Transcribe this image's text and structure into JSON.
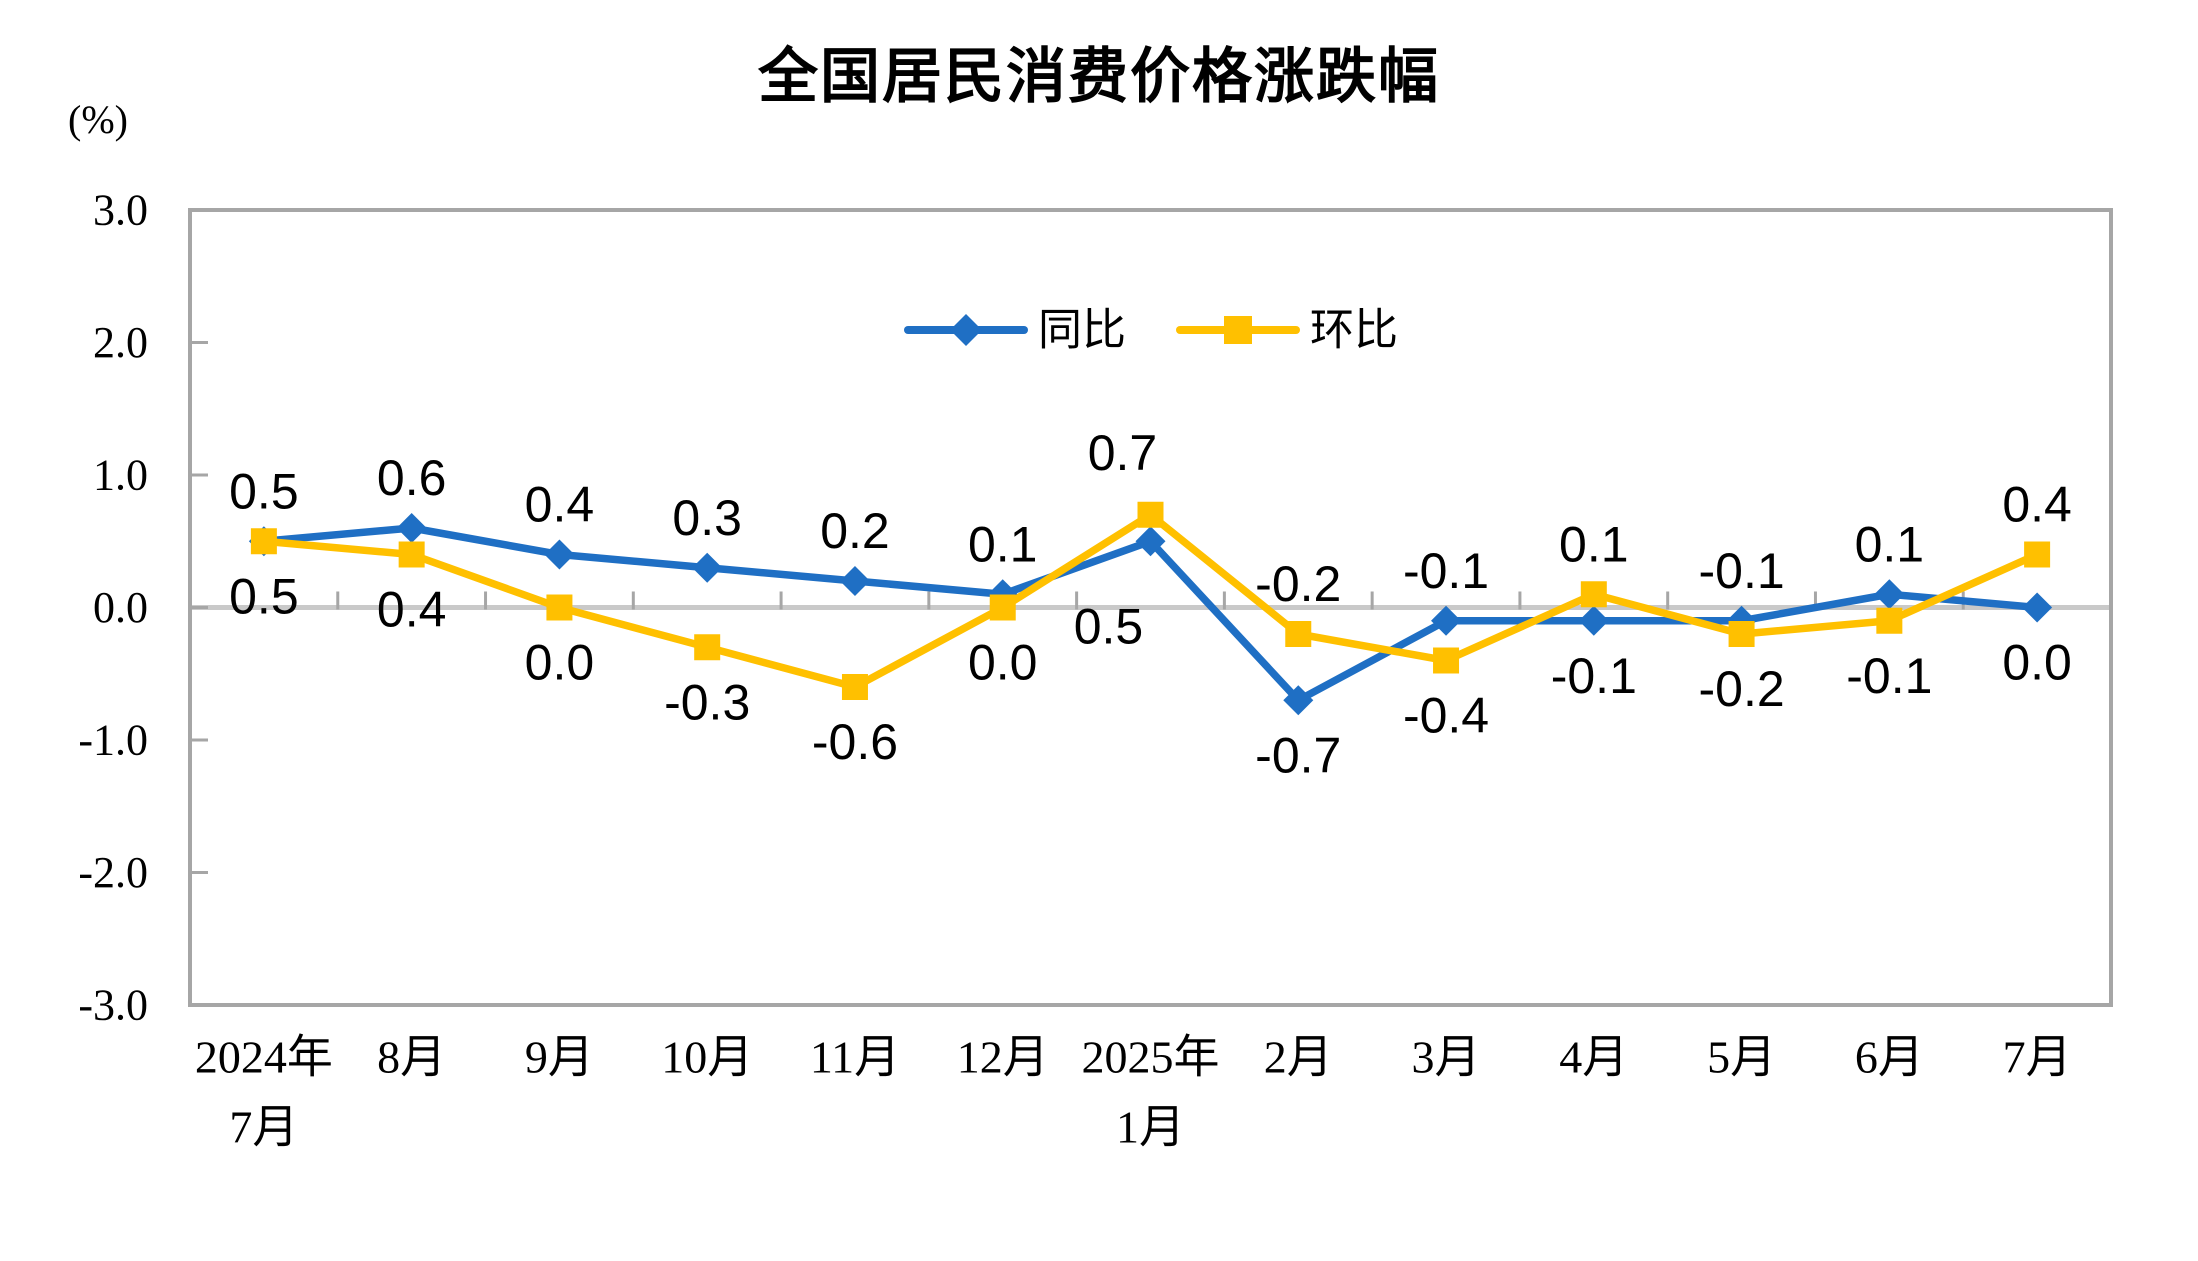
{
  "chart_data": {
    "type": "line",
    "title": "全国居民消费价格涨跌幅",
    "unit": "(%)",
    "ylim": [
      -3.0,
      3.0
    ],
    "ytick_interval": 1.0,
    "ytick_labels": [
      "3.0",
      "2.0",
      "1.0",
      "0.0",
      "-1.0",
      "-2.0",
      "-3.0"
    ],
    "grid": "zero-line-only",
    "legend_position": "top-center-inside",
    "categories": [
      [
        "2024年",
        "7月"
      ],
      [
        "8月"
      ],
      [
        "9月"
      ],
      [
        "10月"
      ],
      [
        "11月"
      ],
      [
        "12月"
      ],
      [
        "2025年",
        "1月"
      ],
      [
        "2月"
      ],
      [
        "3月"
      ],
      [
        "4月"
      ],
      [
        "5月"
      ],
      [
        "6月"
      ],
      [
        "7月"
      ]
    ],
    "series": [
      {
        "key": "tongbi",
        "name": "同比",
        "color": "#1F6FC4",
        "marker": "diamond",
        "values": [
          0.5,
          0.6,
          0.4,
          0.3,
          0.2,
          0.1,
          0.5,
          -0.7,
          -0.1,
          -0.1,
          -0.1,
          0.1,
          0.0
        ],
        "labels": [
          "0.5",
          "0.6",
          "0.4",
          "0.3",
          "0.2",
          "0.1",
          "0.5",
          "-0.7",
          "-0.1",
          "-0.1",
          "-0.1",
          "0.1",
          "0.0"
        ],
        "label_pos": [
          "above",
          "above",
          "above",
          "above",
          "above",
          "above",
          "below",
          "below",
          "above",
          "below",
          "above",
          "above",
          "below"
        ],
        "label_offsets": {
          "6": {
            "dx": -42,
            "dy": 30
          }
        }
      },
      {
        "key": "huanbi",
        "name": "环比",
        "color": "#FFC000",
        "marker": "square",
        "values": [
          0.5,
          0.4,
          0.0,
          -0.3,
          -0.6,
          0.0,
          0.7,
          -0.2,
          -0.4,
          0.1,
          -0.2,
          -0.1,
          0.4
        ],
        "labels": [
          "0.5",
          "0.4",
          "0.0",
          "-0.3",
          "-0.6",
          "0.0",
          "0.7",
          "-0.2",
          "-0.4",
          "0.1",
          "-0.2",
          "-0.1",
          "0.4"
        ],
        "label_pos": [
          "below",
          "below",
          "below",
          "below",
          "below",
          "below",
          "above",
          "above",
          "below",
          "above",
          "below",
          "below",
          "above"
        ],
        "label_offsets": {
          "6": {
            "dx": -28,
            "dy": -12
          }
        }
      }
    ],
    "colors": {
      "plot_border": "#A6A6A6",
      "zero_line": "#C9C9C9",
      "text": "#000000",
      "background": "#FFFFFF"
    }
  }
}
